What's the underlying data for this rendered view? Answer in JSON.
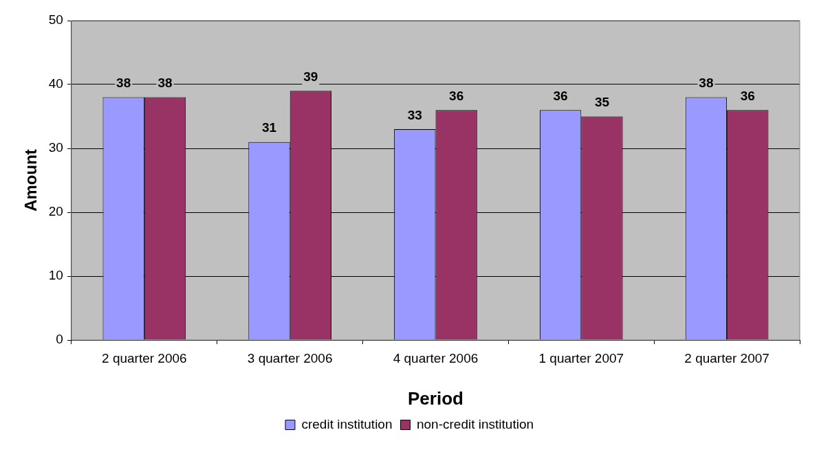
{
  "chart_data": {
    "type": "bar",
    "xlabel": "Period",
    "ylabel": "Amount",
    "categories": [
      "2 quarter 2006",
      "3 quarter 2006",
      "4 quarter 2006",
      "1 quarter 2007",
      "2 quarter 2007"
    ],
    "series": [
      {
        "name": "credit institution",
        "color": "#9999ff",
        "values": [
          38,
          31,
          33,
          36,
          38
        ]
      },
      {
        "name": "non-credit institution",
        "color": "#993366",
        "values": [
          38,
          39,
          36,
          35,
          36
        ]
      }
    ],
    "ylim": [
      0,
      50
    ],
    "yticks": [
      0,
      10,
      20,
      30,
      40,
      50
    ],
    "grid": "y",
    "legend": "bottom",
    "data_labels": true
  }
}
